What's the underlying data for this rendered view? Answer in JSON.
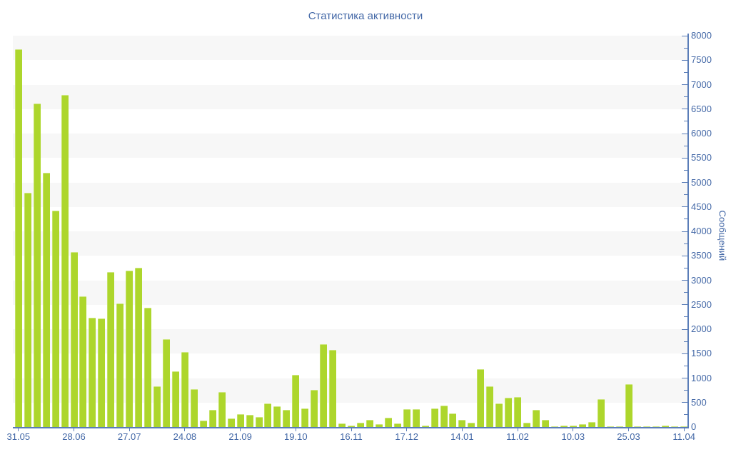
{
  "title": "Статистика активности",
  "colors": {
    "bar": "#add62c",
    "bar_highlight": "rgba(255,255,255,0.40)",
    "band_gray": "#f7f7f7",
    "axis_line": "#5a7db8",
    "label_text": "#4267a6",
    "background": "#ffffff"
  },
  "chart_data": {
    "type": "bar",
    "title": "Статистика активности",
    "xlabel": "",
    "ylabel": "Сообщений",
    "ylim": [
      0,
      8000
    ],
    "y_major_step": 500,
    "y_minor_step": 250,
    "y_tick_labels": [
      0,
      500,
      1000,
      1500,
      2000,
      2500,
      3000,
      3500,
      4000,
      4500,
      5000,
      5500,
      6000,
      6500,
      7000,
      7500,
      8000
    ],
    "grid": "alternating-horizontal-bands",
    "legend": "none",
    "bar_count": 73,
    "x_tick_positions": [
      0,
      6,
      12,
      18,
      24,
      30,
      36,
      42,
      48,
      54,
      60,
      66,
      72
    ],
    "x_tick_labels": [
      "31.05",
      "28.06",
      "27.07",
      "24.08",
      "21.09",
      "19.10",
      "16.11",
      "17.12",
      "14.01",
      "11.02",
      "10.03",
      "25.03",
      "11.04"
    ],
    "values": [
      7720,
      4790,
      6620,
      5190,
      4420,
      6790,
      3570,
      2670,
      2230,
      2220,
      3175,
      2530,
      3190,
      3250,
      2440,
      835,
      1795,
      1140,
      1530,
      770,
      130,
      350,
      710,
      175,
      260,
      250,
      210,
      480,
      420,
      350,
      1065,
      380,
      760,
      1690,
      1580,
      75,
      25,
      90,
      140,
      55,
      190,
      75,
      370,
      360,
      30,
      380,
      440,
      280,
      140,
      90,
      1185,
      835,
      475,
      600,
      610,
      90,
      345,
      150,
      15,
      30,
      30,
      55,
      95,
      575,
      10,
      10,
      875,
      10,
      10,
      10,
      30,
      20,
      15
    ]
  }
}
